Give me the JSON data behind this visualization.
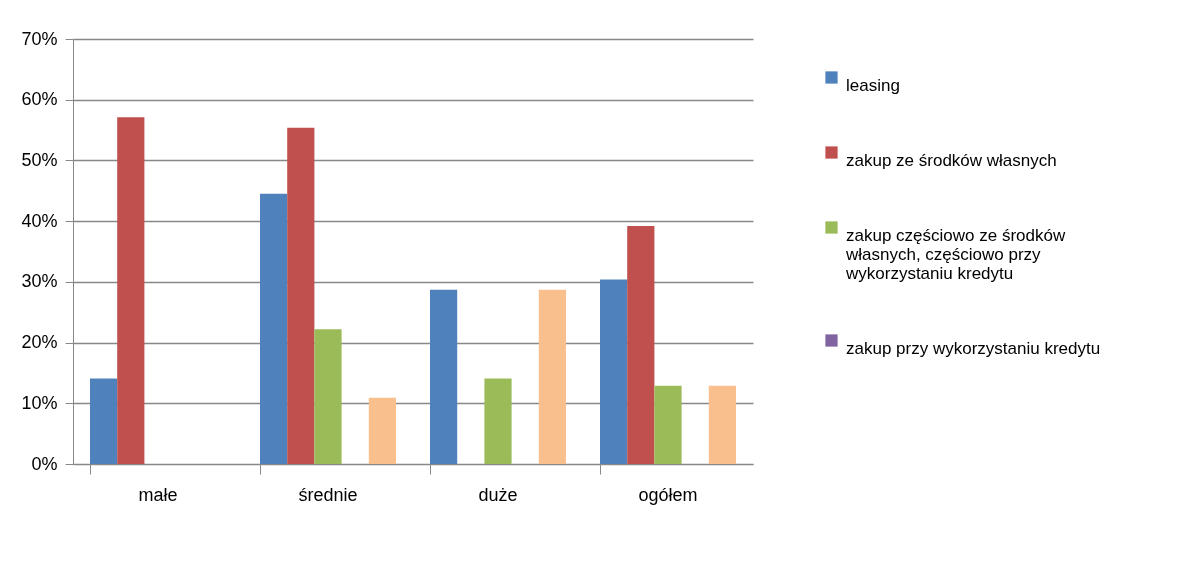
{
  "chart_data": {
    "type": "bar",
    "categories": [
      "małe",
      "średnie",
      "duże",
      "ogółem"
    ],
    "series": [
      {
        "name": "leasing",
        "color": "#4f81bd",
        "values": [
          14.1,
          44.5,
          28.7,
          30.4
        ]
      },
      {
        "name": "zakup ze środków własnych",
        "color": "#c0504d",
        "values": [
          57.1,
          55.4,
          0,
          39.2
        ]
      },
      {
        "name": "zakup częściowo ze środków własnych, częściowo przy wykorzystaniu kredytu",
        "color": "#9bbb59",
        "values": [
          0,
          22.2,
          14.1,
          12.9
        ]
      },
      {
        "name": "zakup przy wykorzystaniu kredytu",
        "color": "#8064a2",
        "values": [
          0,
          0,
          0,
          0
        ]
      },
      {
        "color": "#f9c08e",
        "values": [
          0,
          10.9,
          28.7,
          12.9
        ]
      }
    ],
    "ylim": [
      0,
      70
    ],
    "yticks": [
      {
        "value": 0,
        "label": "0%"
      },
      {
        "value": 10,
        "label": "10%"
      },
      {
        "value": 20,
        "label": "20%"
      },
      {
        "value": 30,
        "label": "30%"
      },
      {
        "value": 40,
        "label": "40%"
      },
      {
        "value": 50,
        "label": "50%"
      },
      {
        "value": 60,
        "label": "60%"
      },
      {
        "value": 70,
        "label": "70%"
      }
    ],
    "grid": "y",
    "legend": "right"
  }
}
